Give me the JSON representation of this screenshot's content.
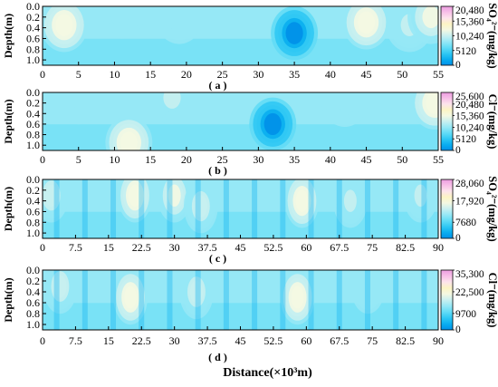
{
  "chart_data": [
    {
      "type": "heatmap",
      "panel_label": "( a )",
      "ylabel": "Depth(m)",
      "yticks": [
        "0.0",
        "0.2",
        "0.4",
        "0.6",
        "0.8",
        "1.0"
      ],
      "ylim": [
        0,
        1.1
      ],
      "xticks": [
        "0",
        "5",
        "10",
        "15",
        "20",
        "25",
        "30",
        "35",
        "40",
        "45",
        "50",
        "55"
      ],
      "xlim": [
        0,
        55
      ],
      "colorbar": {
        "title": "SO₄²⁻(mg/kg)",
        "tick_labels": [
          "20,480",
          "15,360",
          "10,240",
          "5120",
          "0"
        ],
        "max": 20480
      },
      "features": [
        {
          "x": 3,
          "depth": 0.35,
          "level": 0.6
        },
        {
          "x": 11,
          "depth": 0.1,
          "level": 0.35
        },
        {
          "x": 19,
          "depth": 0.2,
          "level": 0.35
        },
        {
          "x": 35,
          "depth": 0.5,
          "level": 0.98
        },
        {
          "x": 45,
          "depth": 0.3,
          "level": 0.6
        },
        {
          "x": 51,
          "depth": 0.35,
          "level": 0.45
        },
        {
          "x": 54,
          "depth": 0.2,
          "level": 0.55
        }
      ]
    },
    {
      "type": "heatmap",
      "panel_label": "( b )",
      "ylabel": "Depth(m)",
      "yticks": [
        "0.0",
        "0.2",
        "0.4",
        "0.6",
        "0.8",
        "1.0"
      ],
      "ylim": [
        0,
        1.1
      ],
      "xticks": [
        "0",
        "5",
        "10",
        "15",
        "20",
        "25",
        "30",
        "35",
        "40",
        "45",
        "50",
        "55"
      ],
      "xlim": [
        0,
        55
      ],
      "colorbar": {
        "title": "Cl⁻(mg/kg)",
        "tick_labels": [
          "25,600",
          "20,480",
          "15,360",
          "10,240",
          "5120",
          "0"
        ],
        "max": 25600
      },
      "features": [
        {
          "x": 5,
          "depth": 0.1,
          "level": 0.4
        },
        {
          "x": 12,
          "depth": 0.95,
          "level": 0.6
        },
        {
          "x": 18,
          "depth": 0.1,
          "level": 0.45
        },
        {
          "x": 32,
          "depth": 0.6,
          "level": 0.95
        },
        {
          "x": 42,
          "depth": 0.15,
          "level": 0.35
        },
        {
          "x": 54.5,
          "depth": 0.2,
          "level": 0.6
        }
      ]
    },
    {
      "type": "heatmap",
      "panel_label": "( c )",
      "ylabel": "Depth(m)",
      "yticks": [
        "0.0",
        "0.2",
        "0.4",
        "0.6",
        "0.8",
        "1.0"
      ],
      "ylim": [
        0,
        1.1
      ],
      "xticks": [
        "0",
        "7.5",
        "15",
        "22.5",
        "30",
        "37.5",
        "45",
        "52.5",
        "60",
        "67.5",
        "75",
        "82.5",
        "90"
      ],
      "xlim": [
        0,
        90
      ],
      "colorbar": {
        "title": "SO₄²⁻(mg/kg)",
        "tick_labels": [
          "28,060",
          "17,920",
          "7680",
          "0"
        ],
        "max": 28060
      },
      "features": [
        {
          "x": 2,
          "depth": 0.3,
          "level": 0.5
        },
        {
          "x": 21,
          "depth": 0.3,
          "level": 0.6
        },
        {
          "x": 30,
          "depth": 0.3,
          "level": 0.55
        },
        {
          "x": 36,
          "depth": 0.5,
          "level": 0.5
        },
        {
          "x": 59,
          "depth": 0.4,
          "level": 0.6
        },
        {
          "x": 70,
          "depth": 0.4,
          "level": 0.45
        },
        {
          "x": 86,
          "depth": 0.3,
          "level": 0.45
        }
      ]
    },
    {
      "type": "heatmap",
      "panel_label": "( d )",
      "ylabel": "Depth(m)",
      "yticks": [
        "0.0",
        "0.2",
        "0.4",
        "0.6",
        "0.8",
        "1.0"
      ],
      "ylim": [
        0,
        1.1
      ],
      "xticks": [
        "0",
        "7.5",
        "15",
        "22.5",
        "30",
        "37.5",
        "45",
        "52.5",
        "60",
        "67.5",
        "75",
        "82.5",
        "90"
      ],
      "xlim": [
        0,
        90
      ],
      "xlabel": "Distance(×10³m)",
      "colorbar": {
        "title": "Cl⁻(mg/kg)",
        "tick_labels": [
          "35,300",
          "22,500",
          "9700",
          "0"
        ],
        "max": 35300
      },
      "features": [
        {
          "x": 4,
          "depth": 0.3,
          "level": 0.5
        },
        {
          "x": 20,
          "depth": 0.5,
          "level": 0.6
        },
        {
          "x": 35,
          "depth": 0.4,
          "level": 0.5
        },
        {
          "x": 58,
          "depth": 0.5,
          "level": 0.6
        },
        {
          "x": 74,
          "depth": 0.3,
          "level": 0.4
        }
      ]
    }
  ],
  "colormap": [
    "#ffffff",
    "#0090e8",
    "#0aaef0",
    "#30c8f4",
    "#62dcf6",
    "#96e8f6",
    "#c8f0f0",
    "#f4f8e2",
    "#fcf4c4",
    "#fde4ec",
    "#f8c0e8",
    "#ec9ce0"
  ]
}
